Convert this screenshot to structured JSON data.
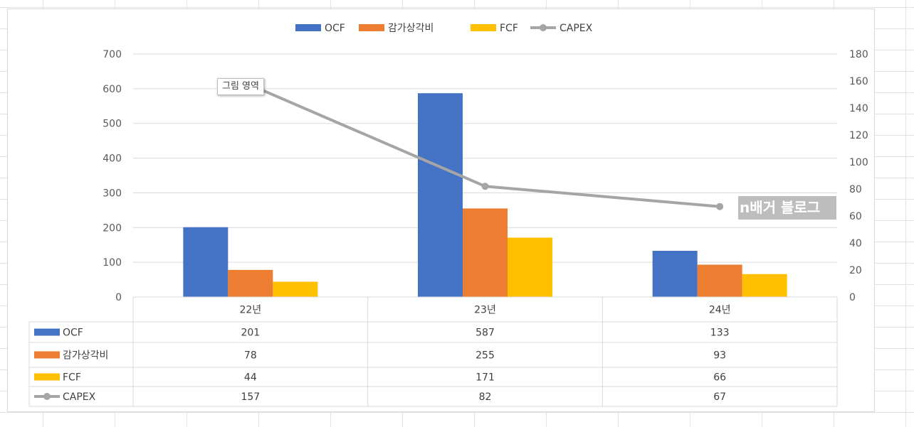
{
  "chart_data": {
    "type": "bar",
    "categories": [
      "22년",
      "23년",
      "24년"
    ],
    "series": [
      {
        "name": "OCF",
        "type": "bar",
        "axis": "left",
        "color": "#4472C4",
        "values": [
          201,
          587,
          133
        ]
      },
      {
        "name": "감가상각비",
        "type": "bar",
        "axis": "left",
        "color": "#ED7D31",
        "values": [
          78,
          255,
          93
        ]
      },
      {
        "name": "FCF",
        "type": "bar",
        "axis": "left",
        "color": "#FFC000",
        "values": [
          44,
          171,
          66
        ]
      },
      {
        "name": "CAPEX",
        "type": "line",
        "axis": "right",
        "color": "#A5A5A5",
        "values": [
          157,
          82,
          67
        ]
      }
    ],
    "y_left": {
      "min": 0,
      "max": 700,
      "step": 100
    },
    "y_right": {
      "min": 0,
      "max": 180,
      "step": 20
    },
    "grid": true,
    "legend_position": "top-center",
    "data_table": true
  },
  "tooltip": {
    "text": "그림 영역"
  },
  "watermark": {
    "text": "n배거 블로그"
  }
}
